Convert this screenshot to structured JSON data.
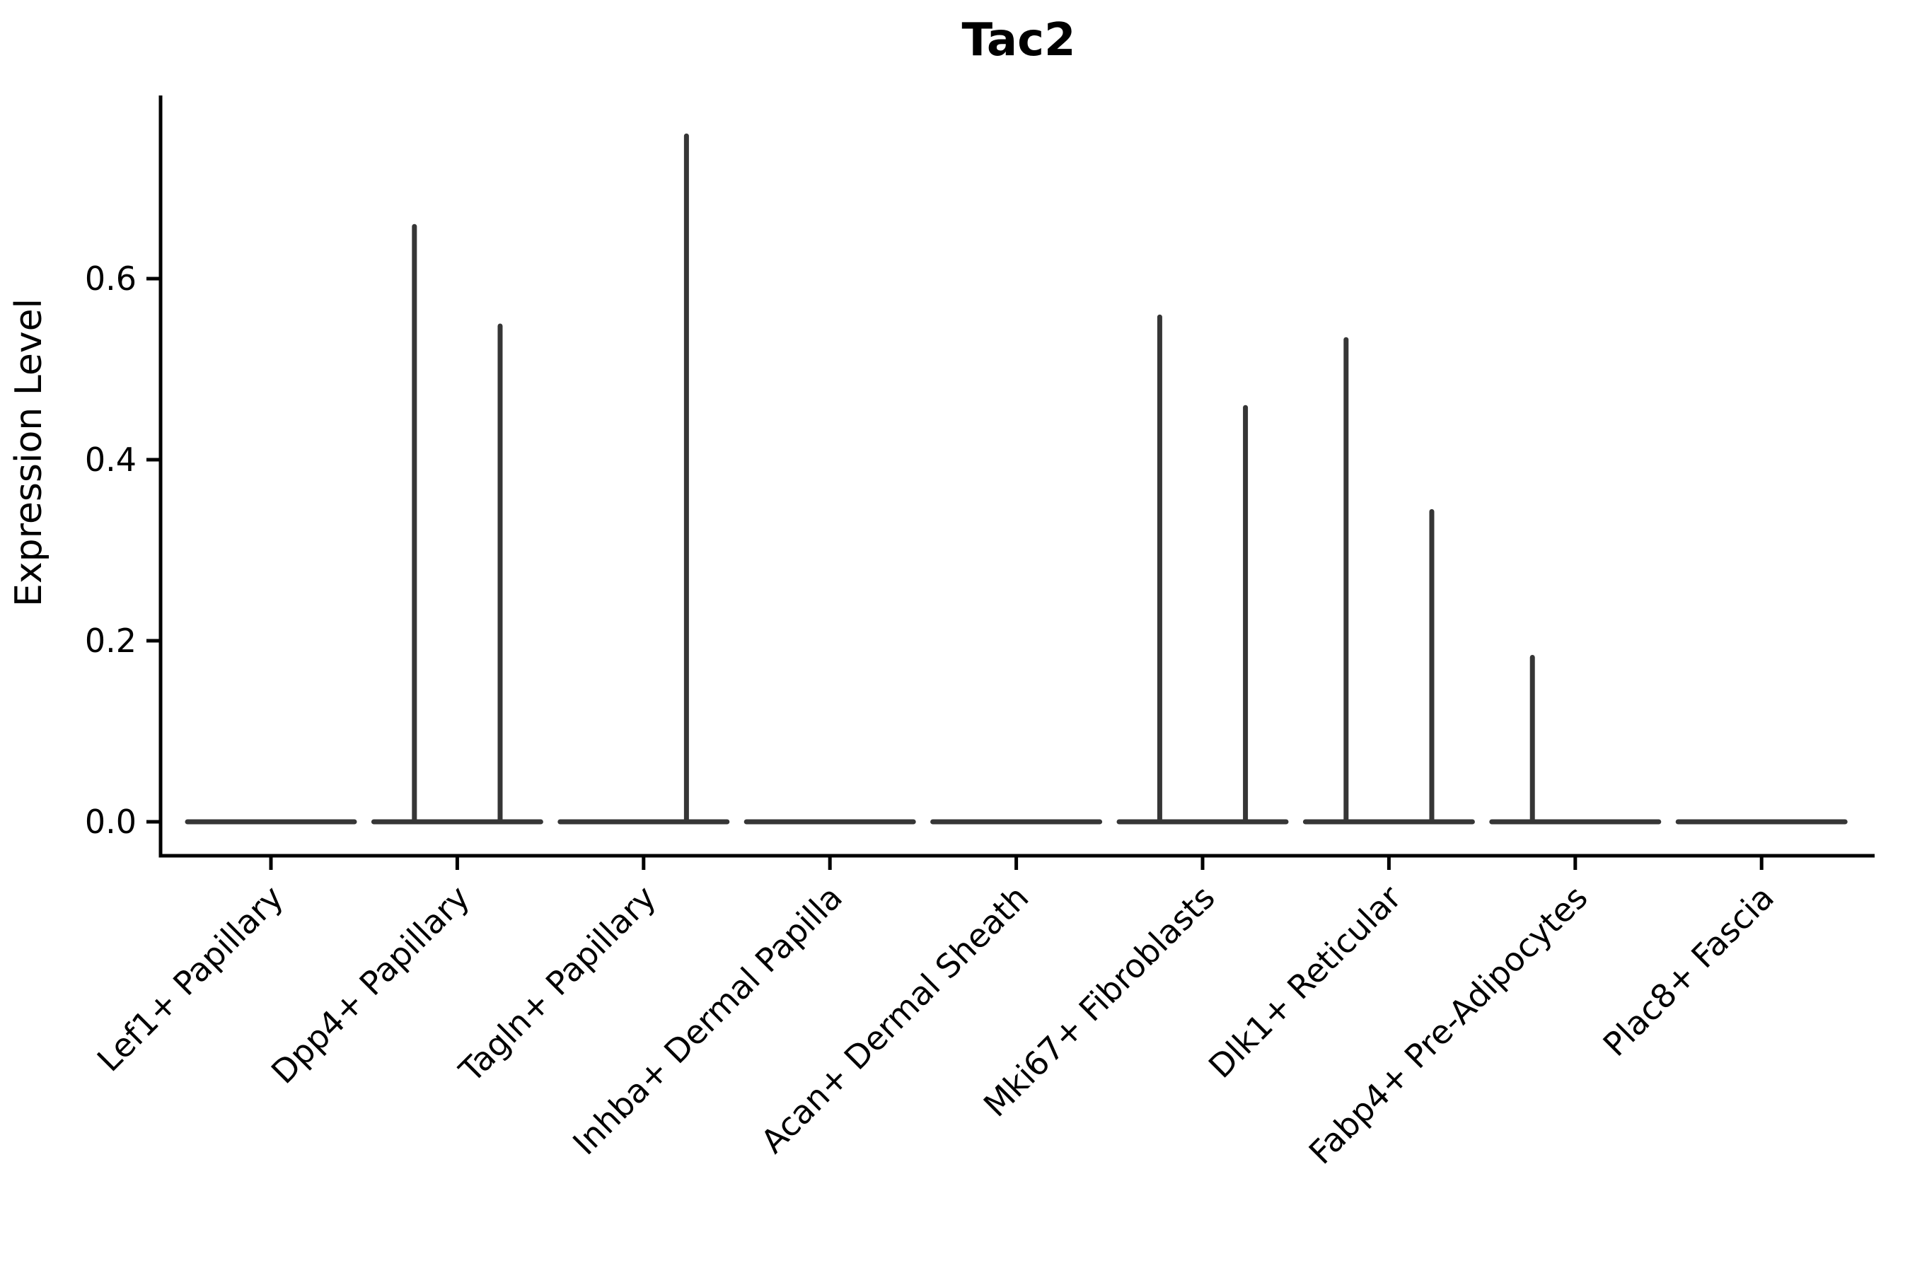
{
  "chart_data": {
    "type": "violin",
    "title": "Tac2",
    "xlabel": "",
    "ylabel": "Expression Level",
    "categories": [
      "Lef1+ Papillary",
      "Dpp4+ Papillary",
      "Tagln+ Papillary",
      "Inhba+ Dermal Papilla",
      "Acan+ Dermal Sheath",
      "Mki67+ Fibroblasts",
      "Dlk1+ Reticular",
      "Fabp4+ Pre-Adipocytes",
      "Plac8+ Fascia"
    ],
    "ytick_labels": [
      "0.0",
      "0.2",
      "0.4",
      "0.6"
    ],
    "ytick_values": [
      0.0,
      0.2,
      0.4,
      0.6
    ],
    "ylim": [
      -0.04,
      0.8
    ],
    "grid": false,
    "legend_position": "none",
    "baseline_value": 0.0,
    "violins_per_category": 2,
    "violin_offsets": [
      -0.23,
      0.23
    ],
    "series": [
      {
        "category": "Lef1+ Papillary",
        "maxima": [
          0.0,
          0.0
        ]
      },
      {
        "category": "Dpp4+ Papillary",
        "maxima": [
          0.66,
          0.55
        ]
      },
      {
        "category": "Tagln+ Papillary",
        "maxima": [
          0.0,
          0.76
        ]
      },
      {
        "category": "Inhba+ Dermal Papilla",
        "maxima": [
          0.0,
          0.0
        ]
      },
      {
        "category": "Acan+ Dermal Sheath",
        "maxima": [
          0.0,
          0.0
        ]
      },
      {
        "category": "Mki67+ Fibroblasts",
        "maxima": [
          0.56,
          0.46
        ]
      },
      {
        "category": "Dlk1+ Reticular",
        "maxima": [
          0.535,
          0.345
        ]
      },
      {
        "category": "Fabp4+ Pre-Adipocytes",
        "maxima": [
          0.184,
          0.0
        ]
      },
      {
        "category": "Plac8+ Fascia",
        "maxima": [
          0.0,
          0.0
        ]
      }
    ],
    "colors": {
      "violin": "#363636",
      "axis": "#000000",
      "text": "#000000",
      "background": "#ffffff"
    }
  }
}
